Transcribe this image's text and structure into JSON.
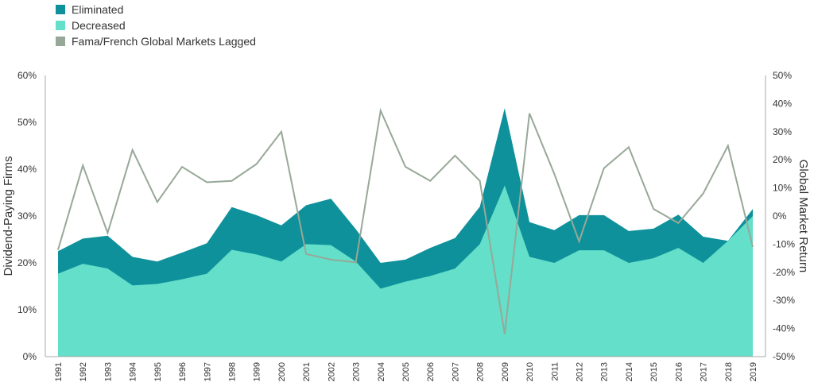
{
  "chart_data": {
    "type": "area",
    "x": [
      "1991",
      "1992",
      "1993",
      "1994",
      "1995",
      "1996",
      "1997",
      "1998",
      "1999",
      "2000",
      "2001",
      "2002",
      "2003",
      "2004",
      "2005",
      "2006",
      "2007",
      "2008",
      "2009",
      "2010",
      "2011",
      "2012",
      "2013",
      "2014",
      "2015",
      "2016",
      "2017",
      "2018",
      "2019"
    ],
    "series": [
      {
        "name": "Eliminated",
        "axis": "left",
        "kind": "area-total",
        "color": "#0f919b",
        "values": [
          22.5,
          25.2,
          25.8,
          21.3,
          20.3,
          22.2,
          24.2,
          31.9,
          30.2,
          28.0,
          32.3,
          33.7,
          27.2,
          20.0,
          20.7,
          23.2,
          25.3,
          32.0,
          53.0,
          28.7,
          27.0,
          30.2,
          30.2,
          26.8,
          27.3,
          30.3,
          25.6,
          24.7,
          31.5
        ]
      },
      {
        "name": "Decreased",
        "axis": "left",
        "kind": "area",
        "color": "#63dfca",
        "values": [
          17.7,
          19.8,
          18.8,
          15.2,
          15.5,
          16.5,
          17.7,
          22.8,
          21.8,
          20.3,
          24.0,
          23.8,
          20.3,
          14.5,
          16.0,
          17.2,
          18.8,
          24.0,
          36.5,
          21.3,
          20.0,
          22.7,
          22.7,
          20.0,
          21.0,
          23.2,
          20.0,
          24.7,
          30.0
        ]
      },
      {
        "name": "Fama/French Global Markets Lagged",
        "axis": "right",
        "kind": "line",
        "color": "#97a898",
        "values": [
          -12,
          18,
          -6,
          23.5,
          5,
          17.5,
          12,
          12.5,
          18.5,
          30,
          -13.5,
          -15.5,
          -16.5,
          37.5,
          17.5,
          12.5,
          21.5,
          12.5,
          -42,
          36.5,
          15,
          -9,
          17,
          24.5,
          2.5,
          -2.5,
          8,
          25,
          -11
        ]
      }
    ],
    "left_axis": {
      "label": "Dividend-Paying Firms",
      "ylim": [
        0,
        60
      ],
      "ticks": [
        "0%",
        "10%",
        "20%",
        "30%",
        "40%",
        "50%",
        "60%"
      ]
    },
    "right_axis": {
      "label": "Global Market Return",
      "ylim": [
        -50,
        50
      ],
      "ticks": [
        "-50%",
        "-40%",
        "-30%",
        "-20%",
        "-10%",
        "0%",
        "10%",
        "20%",
        "30%",
        "40%",
        "50%"
      ]
    },
    "legend": {
      "placement": "top-left"
    },
    "grid": false
  }
}
